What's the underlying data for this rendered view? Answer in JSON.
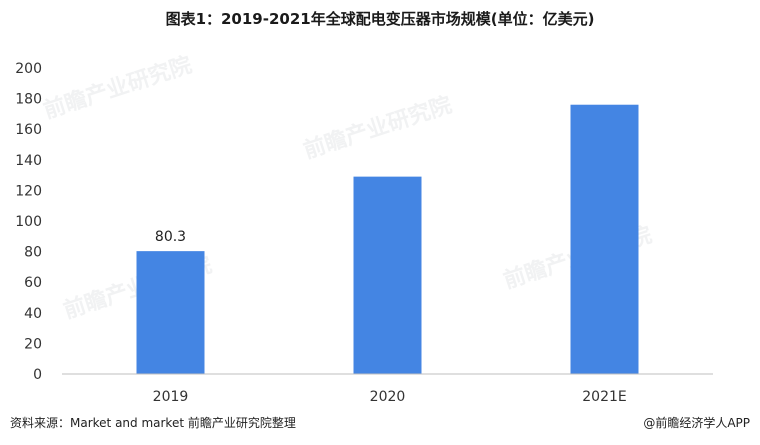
{
  "title": "图表1：2019-2021年全球配电变压器市场规模(单位：亿美元)",
  "footer": {
    "source": "资料来源：Market and market 前瞻产业研究院整理",
    "brand": "@前瞻经济学人APP"
  },
  "watermark": "前瞻产业研究院",
  "colors": {
    "bar": "#4485e3",
    "axis": "#bfbfbf"
  },
  "chart_data": {
    "type": "bar",
    "title": "图表1：2019-2021年全球配电变压器市场规模(单位：亿美元)",
    "categories": [
      "2019",
      "2020",
      "2021E"
    ],
    "values": [
      80.3,
      129,
      176
    ],
    "data_labels": [
      "80.3",
      "",
      ""
    ],
    "ylim": [
      0,
      200
    ],
    "yticks": [
      0,
      20,
      40,
      60,
      80,
      100,
      120,
      140,
      160,
      180,
      200
    ],
    "grid": false,
    "xlabel": "",
    "ylabel": ""
  }
}
